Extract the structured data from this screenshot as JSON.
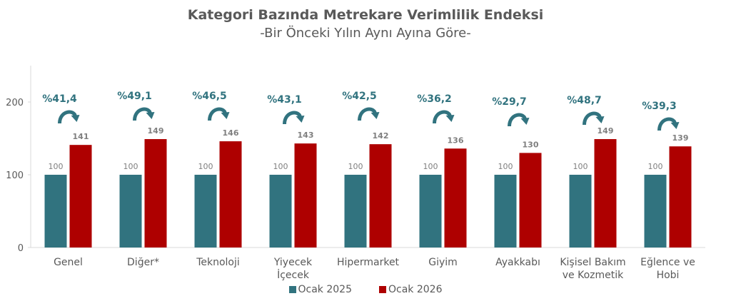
{
  "chart_data": {
    "type": "bar",
    "title": "Kategori Bazında Metrekare Verimlilik Endeksi",
    "subtitle": "-Bir Önceki Yılın Aynı Ayına Göre-",
    "categories": [
      "Genel",
      "Diğer*",
      "Teknoloji",
      "Yiyecek İçecek",
      "Hipermarket",
      "Giyim",
      "Ayakkabı",
      "Kişisel Bakım ve Kozmetik",
      "Eğlence ve Hobi"
    ],
    "category_lines": [
      [
        "Genel"
      ],
      [
        "Diğer*"
      ],
      [
        "Teknoloji"
      ],
      [
        "Yiyecek",
        "İçecek"
      ],
      [
        "Hipermarket"
      ],
      [
        "Giyim"
      ],
      [
        "Ayakkabı"
      ],
      [
        "Kişisel Bakım",
        "ve Kozmetik"
      ],
      [
        "Eğlence ve",
        "Hobi"
      ]
    ],
    "series": [
      {
        "name": "Ocak 2025",
        "color": "#31737F",
        "values": [
          100,
          100,
          100,
          100,
          100,
          100,
          100,
          100,
          100
        ]
      },
      {
        "name": "Ocak 2026",
        "color": "#AE0000",
        "values": [
          141,
          149,
          146,
          143,
          142,
          136,
          130,
          149,
          139
        ]
      }
    ],
    "change_labels": [
      "%41,4",
      "%49,1",
      "%46,5",
      "%43,1",
      "%42,5",
      "%36,2",
      "%29,7",
      "%48,7",
      "%39,3"
    ],
    "change_color": "#31737F",
    "change_icon": "curved-arrow-right-icon",
    "yticks": [
      0,
      100,
      200
    ],
    "ylim": [
      0,
      250
    ],
    "grid": false,
    "legend_position": "bottom"
  }
}
